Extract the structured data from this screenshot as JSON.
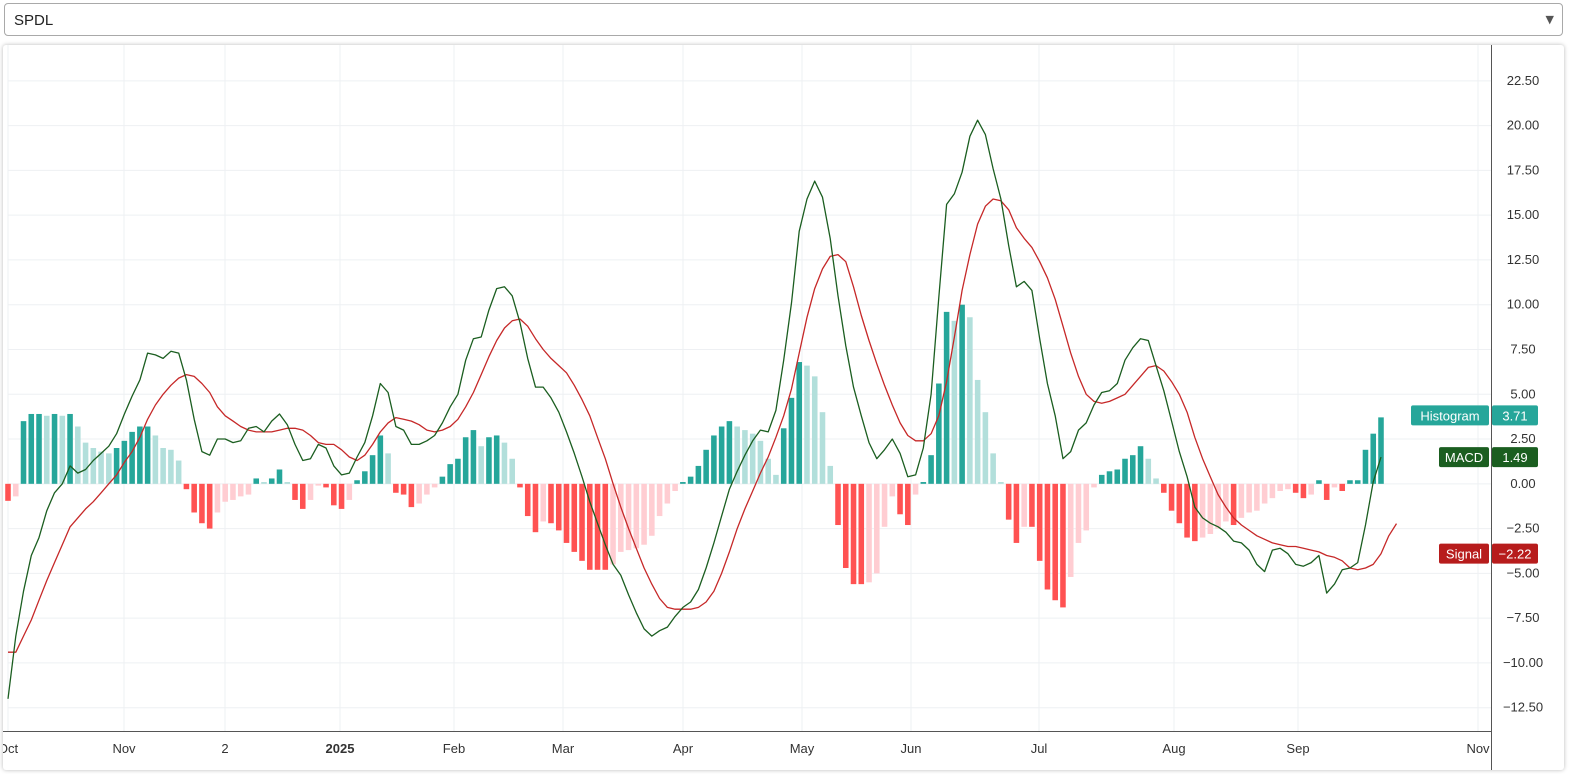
{
  "symbol_select": {
    "value": "SPDL",
    "caret_icon": "chevron-down-icon"
  },
  "chart_data": {
    "type": "line",
    "title": "",
    "x_ticks": [
      "Oct",
      "Nov",
      "2",
      "2025",
      "Feb",
      "Mar",
      "Apr",
      "May",
      "Jun",
      "Jul",
      "Aug",
      "Sep",
      "Nov"
    ],
    "x_ticks_bold": [
      "2025"
    ],
    "y_ticks": [
      "22.50",
      "20.00",
      "17.50",
      "15.00",
      "12.50",
      "10.00",
      "7.50",
      "5.00",
      "2.50",
      "0.00",
      "−2.50",
      "−5.00",
      "−7.50",
      "−10.00",
      "−12.50"
    ],
    "ylim": [
      -13.8,
      24.5
    ],
    "grid": true,
    "series": [
      {
        "name": "MACD",
        "kind": "line",
        "color": "#1b5e20",
        "values": [
          -12.0,
          -8.5,
          -6.0,
          -4.0,
          -3.0,
          -1.5,
          -0.5,
          0.0,
          1.0,
          0.6,
          0.8,
          1.3,
          1.7,
          2.1,
          2.8,
          3.9,
          4.9,
          5.8,
          7.3,
          7.2,
          7.0,
          7.4,
          7.3,
          5.8,
          3.6,
          1.8,
          1.6,
          2.5,
          2.5,
          2.3,
          2.4,
          3.1,
          3.2,
          2.9,
          3.5,
          3.9,
          3.3,
          2.2,
          1.3,
          1.4,
          2.2,
          2.0,
          1.0,
          0.5,
          0.6,
          1.5,
          2.3,
          3.8,
          5.6,
          5.1,
          3.2,
          3.0,
          2.2,
          2.2,
          2.4,
          2.7,
          3.4,
          4.3,
          5.0,
          6.9,
          8.1,
          8.2,
          9.7,
          10.9,
          11.0,
          10.5,
          9.0,
          7.0,
          5.4,
          5.4,
          4.8,
          4.0,
          2.9,
          1.7,
          0.4,
          -1.0,
          -2.2,
          -3.4,
          -4.5,
          -5.1,
          -6.2,
          -7.2,
          -8.1,
          -8.5,
          -8.2,
          -8.0,
          -7.4,
          -6.9,
          -6.6,
          -5.9,
          -4.7,
          -3.3,
          -1.8,
          -0.3,
          0.7,
          1.6,
          2.4,
          3.0,
          2.9,
          4.1,
          6.9,
          10.1,
          14.1,
          15.9,
          16.9,
          16.0,
          13.7,
          10.5,
          7.7,
          5.4,
          3.8,
          2.3,
          1.4,
          1.9,
          2.5,
          1.7,
          0.4,
          0.5,
          2.0,
          5.0,
          10.4,
          15.6,
          16.2,
          17.4,
          19.4,
          20.3,
          19.5,
          17.6,
          15.9,
          13.3,
          11.0,
          11.3,
          10.8,
          8.1,
          5.6,
          3.8,
          1.4,
          1.8,
          3.0,
          3.4,
          4.4,
          5.1,
          5.2,
          5.6,
          6.9,
          7.6,
          8.1,
          8.0,
          6.6,
          5.2,
          3.5,
          1.8,
          0.4,
          -1.3,
          -1.9,
          -2.2,
          -2.4,
          -2.7,
          -3.2,
          -3.3,
          -3.7,
          -4.5,
          -4.9,
          -3.7,
          -3.6,
          -3.9,
          -4.5,
          -4.6,
          -4.4,
          -4.0,
          -6.1,
          -5.6,
          -4.8,
          -4.7,
          -4.4,
          -2.3,
          0.1,
          1.49
        ]
      },
      {
        "name": "Signal",
        "kind": "line",
        "color": "#c62828",
        "values": [
          -9.4,
          -9.4,
          -8.5,
          -7.6,
          -6.5,
          -5.4,
          -4.4,
          -3.4,
          -2.4,
          -1.9,
          -1.4,
          -1.0,
          -0.5,
          0.0,
          0.5,
          1.2,
          1.8,
          2.6,
          3.6,
          4.4,
          5.0,
          5.5,
          5.9,
          6.1,
          6.0,
          5.6,
          5.1,
          4.3,
          3.8,
          3.5,
          3.2,
          3.0,
          2.9,
          2.9,
          2.9,
          3.0,
          3.1,
          3.1,
          3.0,
          2.7,
          2.3,
          2.2,
          2.2,
          1.9,
          1.5,
          1.3,
          1.6,
          2.2,
          2.9,
          3.4,
          3.7,
          3.6,
          3.5,
          3.3,
          3.0,
          2.9,
          3.0,
          3.2,
          3.6,
          4.3,
          5.1,
          6.1,
          7.1,
          8.0,
          8.7,
          9.1,
          9.2,
          8.8,
          8.1,
          7.5,
          7.0,
          6.6,
          6.2,
          5.5,
          4.7,
          3.8,
          2.6,
          1.4,
          0.0,
          -1.3,
          -2.5,
          -3.6,
          -4.7,
          -5.6,
          -6.4,
          -6.9,
          -7.0,
          -7.0,
          -7.0,
          -6.9,
          -6.6,
          -6.0,
          -5.0,
          -3.8,
          -2.5,
          -1.4,
          -0.4,
          0.6,
          1.5,
          2.6,
          3.8,
          5.3,
          7.3,
          9.3,
          10.9,
          12.0,
          12.7,
          12.8,
          12.4,
          11.0,
          9.4,
          8.0,
          6.7,
          5.5,
          4.4,
          3.4,
          2.7,
          2.4,
          2.4,
          2.8,
          3.8,
          5.7,
          8.2,
          10.8,
          12.8,
          14.5,
          15.5,
          15.9,
          15.8,
          15.3,
          14.3,
          13.7,
          13.2,
          12.4,
          11.5,
          10.3,
          8.8,
          7.3,
          6.0,
          5.0,
          4.6,
          4.5,
          4.6,
          4.8,
          5.0,
          5.5,
          6.0,
          6.5,
          6.6,
          6.3,
          5.7,
          5.0,
          4.0,
          2.6,
          1.4,
          0.4,
          -0.6,
          -1.3,
          -1.9,
          -2.3,
          -2.6,
          -2.9,
          -3.1,
          -3.3,
          -3.4,
          -3.5,
          -3.5,
          -3.6,
          -3.7,
          -3.8,
          -4.0,
          -4.1,
          -4.3,
          -4.7,
          -4.8,
          -4.7,
          -4.5,
          -3.9,
          -2.9,
          -2.22
        ]
      },
      {
        "name": "Histogram",
        "kind": "histogram",
        "colors": {
          "pos_rising": "#26a69a",
          "pos_falling": "#b2dfdb",
          "neg_falling": "#ff5252",
          "neg_rising": "#ffcdd2"
        },
        "values": [
          -0.95,
          -0.7,
          3.5,
          3.9,
          3.9,
          3.8,
          3.9,
          3.8,
          3.9,
          3.2,
          2.3,
          2.0,
          1.8,
          1.7,
          2.0,
          2.4,
          2.9,
          3.2,
          3.2,
          2.7,
          2.0,
          1.9,
          1.3,
          -0.3,
          -1.6,
          -2.2,
          -2.5,
          -1.6,
          -1.0,
          -0.9,
          -0.7,
          -0.6,
          0.3,
          0.1,
          0.3,
          0.8,
          0.1,
          -0.9,
          -1.4,
          -0.9,
          -0.1,
          -0.2,
          -1.2,
          -1.4,
          -0.9,
          0.2,
          0.7,
          1.6,
          2.7,
          1.7,
          -0.5,
          -0.6,
          -1.3,
          -1.1,
          -0.6,
          -0.2,
          0.4,
          1.1,
          1.4,
          2.6,
          3.0,
          2.1,
          2.6,
          2.7,
          2.3,
          1.4,
          -0.2,
          -1.8,
          -2.7,
          -2.1,
          -2.2,
          -2.6,
          -3.3,
          -3.8,
          -4.3,
          -4.8,
          -4.8,
          -4.8,
          -4.5,
          -3.8,
          -3.7,
          -3.6,
          -3.4,
          -2.9,
          -1.8,
          -1.1,
          -0.4,
          0.1,
          0.4,
          1.0,
          1.9,
          2.7,
          3.2,
          3.5,
          3.2,
          3.0,
          2.8,
          2.4,
          1.4,
          0.5,
          3.1,
          4.8,
          6.8,
          6.6,
          6.0,
          4.0,
          1.0,
          -2.3,
          -4.7,
          -5.6,
          -5.6,
          -5.5,
          -5.0,
          -2.4,
          -0.7,
          -1.7,
          -2.3,
          -0.6,
          0.1,
          1.6,
          5.6,
          9.6,
          9.1,
          10.0,
          9.3,
          5.8,
          4.0,
          1.7,
          0.1,
          -2.0,
          -3.3,
          -2.4,
          -2.4,
          -4.3,
          -5.9,
          -6.5,
          -6.9,
          -5.2,
          -3.3,
          -2.6,
          -0.2,
          0.5,
          0.7,
          0.8,
          1.4,
          1.6,
          2.1,
          1.4,
          0.3,
          -0.5,
          -1.5,
          -2.2,
          -3.0,
          -3.2,
          -3.0,
          -2.8,
          -2.5,
          -2.1,
          -2.3,
          -1.9,
          -1.6,
          -1.5,
          -1.1,
          -0.8,
          -0.4,
          -0.3,
          -0.5,
          -0.8,
          -0.6,
          0.2,
          -0.9,
          -0.2,
          -0.4,
          0.2,
          0.2,
          1.9,
          2.8,
          3.71
        ]
      }
    ],
    "legend_labels": [
      {
        "name": "Histogram",
        "value": "3.71",
        "color": "#26a69a"
      },
      {
        "name": "MACD",
        "value": "1.49",
        "color": "#1b5e20"
      },
      {
        "name": "Signal",
        "value": "−2.22",
        "color": "#b71c1c"
      }
    ]
  }
}
